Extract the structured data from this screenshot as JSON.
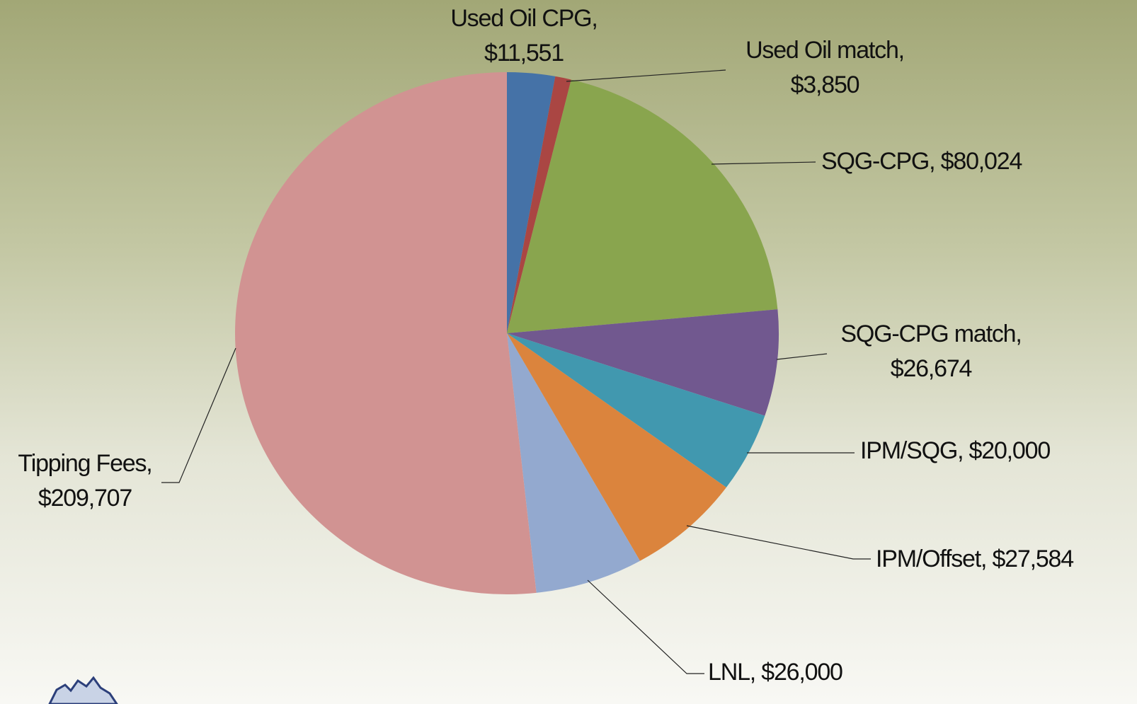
{
  "chart_data": {
    "type": "pie",
    "values": [
      11551,
      3850,
      80024,
      26674,
      20000,
      27584,
      26000,
      209707
    ],
    "value_labels": [
      "Used Oil CPG, $11,551",
      "Used Oil match, $3,850",
      "SQG-CPG, $80,024",
      "SQG-CPG match, $26,674",
      "IPM/SQG, $20,000",
      "IPM/Offset, $27,584",
      "LNL, $26,000",
      "Tipping Fees, $209,707"
    ],
    "colors": [
      "#4572a7",
      "#aa4643",
      "#89a54e",
      "#71588f",
      "#4198af",
      "#db843d",
      "#93a9cf",
      "#d19392"
    ]
  }
}
